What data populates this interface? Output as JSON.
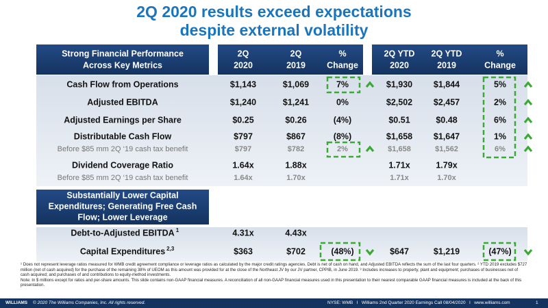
{
  "title": [
    "2Q 2020 results exceed expectations",
    "despite external volatility"
  ],
  "header": {
    "label": [
      "Strong Financial Performance",
      "Across Key Metrics"
    ],
    "columns": [
      [
        "2Q",
        "2020"
      ],
      [
        "2Q",
        "2019"
      ],
      [
        "%",
        "Change"
      ],
      [
        "2Q YTD",
        "2020"
      ],
      [
        "2Q YTD",
        "2019"
      ],
      [
        "%",
        "Change"
      ]
    ]
  },
  "rows": [
    {
      "label": "Cash Flow from Operations",
      "cells": [
        "$1,143",
        "$1,069",
        "7%",
        "$1,930",
        "$1,844",
        "5%"
      ]
    },
    {
      "label": "Adjusted EBITDA",
      "cells": [
        "$1,240",
        "$1,241",
        "0%",
        "$2,502",
        "$2,457",
        "2%"
      ]
    },
    {
      "label": "Adjusted Earnings per Share",
      "cells": [
        "$0.25",
        "$0.26",
        "(4%)",
        "$0.51",
        "$0.48",
        "6%"
      ]
    },
    {
      "label": "Distributable Cash Flow",
      "cells": [
        "$797",
        "$867",
        "(8%)",
        "$1,658",
        "$1,647",
        "1%"
      ]
    },
    {
      "label": "Before $85 mm 2Q ‘19 cash tax benefit",
      "cells": [
        "$797",
        "$782",
        "2%",
        "$1,658",
        "$1,562",
        "6%"
      ]
    },
    {
      "label": "Dividend Coverage Ratio",
      "cells": [
        "1.64x",
        "1.88x",
        null,
        "1.71x",
        "1.79x",
        null
      ]
    },
    {
      "label": "Before $85 mm 2Q ‘19 cash tax benefit",
      "cells": [
        "1.64x",
        "1.70x",
        null,
        "1.71x",
        "1.70x",
        null
      ]
    }
  ],
  "section": {
    "label": [
      "Substantially Lower Capital",
      "Expenditures; Generating Free Cash",
      "Flow; Lower Leverage"
    ],
    "rows": [
      {
        "label": "Debt-to-Adjusted EBITDA",
        "note": "1",
        "cells": [
          "4.31x",
          "4.43x",
          null,
          null,
          null,
          null
        ]
      },
      {
        "label": "Capital Expenditures",
        "note": "2,3",
        "cells": [
          "$363",
          "$702",
          "(48%)",
          "$647",
          "$1,219",
          "(47%)"
        ]
      }
    ]
  },
  "footnotes": [
    "¹ Does not represent leverage ratios measured for WMB credit agreement compliance or leverage ratios as calculated by the major credit ratings agencies. Debt is net of cash on hand, and Adjusted EBITDA reflects the sum of the last four quarters. ² YTD 2019 excludes $727 million (net of cash acquired) for the purchase of the remaining 38% of UEOM as this amount was provided for at the close of the Northeast JV by our JV partner, CPPIB, in June 2019. ³ Includes increases to property, plant and equipment; purchases of businesses net of cash acquired; and purchases of and contributions to equity-method investments.",
    "Note: In $ millions except for ratios and per-share amounts. This slide contains non-GAAP financial measures. A reconciliation of all non-GAAP financial measures used in this presentation to their nearest comparable GAAP financial measures is included at the back of this presentation."
  ],
  "footer": {
    "brand": "WILLIAMS",
    "copyright": "© 2020 The Williams Companies, Inc. All rights reserved.",
    "info": "NYSE: WMB   I   Williams 2nd Quarter 2020 Earnings Call 08/04/2020   I   www.williams.com",
    "page": "1"
  }
}
